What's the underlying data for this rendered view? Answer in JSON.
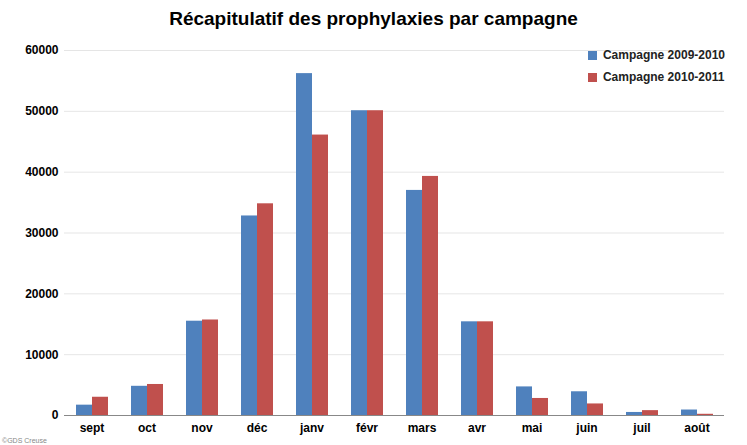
{
  "chart_data": {
    "type": "bar",
    "title": "Récapitulatif des prophylaxies par campagne",
    "categories": [
      "sept",
      "oct",
      "nov",
      "déc",
      "janv",
      "févr",
      "mars",
      "avr",
      "mai",
      "juin",
      "juil",
      "août"
    ],
    "series": [
      {
        "name": "Campagne 2009-2010",
        "color": "#4f81bd",
        "values": [
          1700,
          4800,
          15500,
          32800,
          56200,
          50100,
          37000,
          15400,
          4700,
          3900,
          500,
          900
        ]
      },
      {
        "name": "Campagne 2010-2011",
        "color": "#c0504d",
        "values": [
          3000,
          5100,
          15700,
          34800,
          46100,
          50100,
          39300,
          15400,
          2800,
          1900,
          800,
          200
        ]
      }
    ],
    "ylim": [
      0,
      60000
    ],
    "yticks": [
      0,
      10000,
      20000,
      30000,
      40000,
      50000,
      60000
    ],
    "grid": true,
    "legend": "top-right",
    "annotations": [
      "©GDS Creuse"
    ]
  }
}
